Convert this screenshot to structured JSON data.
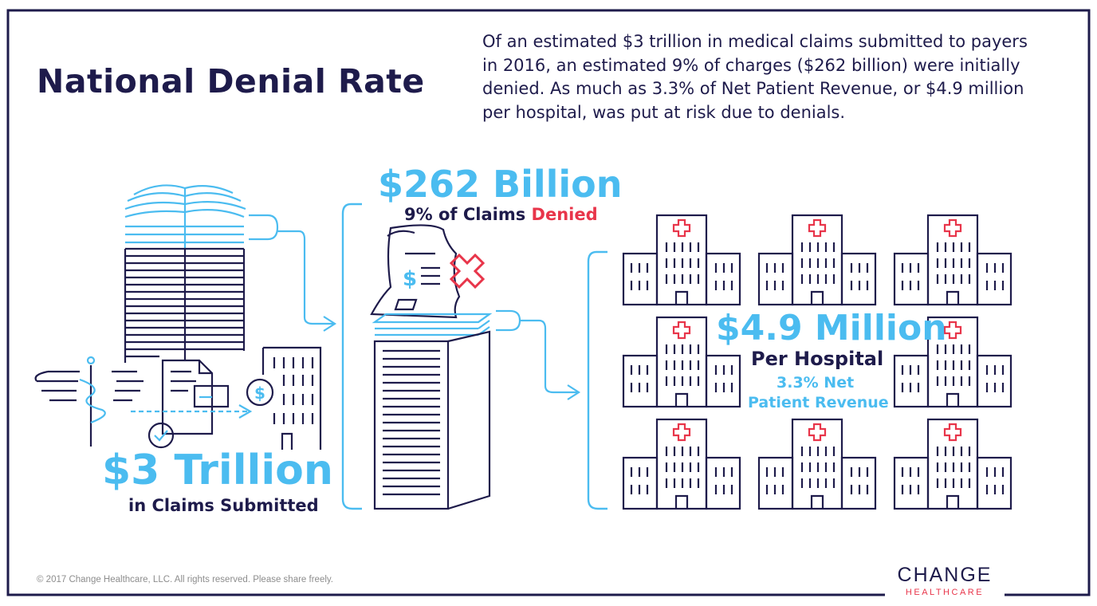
{
  "header": {
    "title": "National Denial Rate",
    "intro": "Of an estimated $3 trillion in medical claims submitted to payers in 2016, an estimated 9% of charges ($262 billion) were initially denied. As much as 3.3% of Net Patient Revenue, or $4.9 million per hospital, was put at risk due to denials."
  },
  "stage_submitted": {
    "amount": "$3 Trillion",
    "caption": "in Claims Submitted"
  },
  "stage_denied": {
    "amount": "$262 Billion",
    "caption_prefix": "9% of Claims",
    "caption_highlight": "Denied"
  },
  "stage_hospital": {
    "amount": "$4.9 Million",
    "caption": "Per Hospital",
    "detail_line1": "3.3% Net",
    "detail_line2": "Patient Revenue"
  },
  "footer": {
    "copyright": "© 2017 Change Healthcare, LLC. All rights reserved. Please share freely.",
    "logo_main": "CHANGE",
    "logo_sub": "HEALTHCARE"
  },
  "colors": {
    "navy": "#1e1b4b",
    "light_blue": "#4bbcf0",
    "red": "#e8354a"
  }
}
